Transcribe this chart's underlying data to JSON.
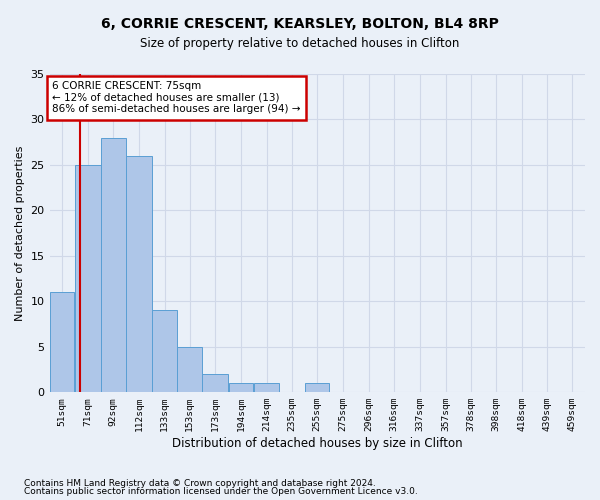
{
  "title1": "6, CORRIE CRESCENT, KEARSLEY, BOLTON, BL4 8RP",
  "title2": "Size of property relative to detached houses in Clifton",
  "xlabel": "Distribution of detached houses by size in Clifton",
  "ylabel": "Number of detached properties",
  "bin_labels": [
    "51sqm",
    "71sqm",
    "92sqm",
    "112sqm",
    "133sqm",
    "153sqm",
    "173sqm",
    "194sqm",
    "214sqm",
    "235sqm",
    "255sqm",
    "275sqm",
    "296sqm",
    "316sqm",
    "337sqm",
    "357sqm",
    "378sqm",
    "398sqm",
    "418sqm",
    "439sqm",
    "459sqm"
  ],
  "bar_values": [
    11,
    25,
    28,
    26,
    9,
    5,
    2,
    1,
    1,
    0,
    1,
    0,
    0,
    0,
    0,
    0,
    0,
    0,
    0,
    0,
    0
  ],
  "bar_color": "#aec6e8",
  "bar_edge_color": "#5a9fd4",
  "grid_color": "#d0d8e8",
  "background_color": "#eaf0f8",
  "property_line_x": 75,
  "bin_edges": [
    51,
    71,
    92,
    112,
    133,
    153,
    173,
    194,
    214,
    235,
    255,
    275,
    296,
    316,
    337,
    357,
    378,
    398,
    418,
    439,
    459,
    479
  ],
  "annotation_title": "6 CORRIE CRESCENT: 75sqm",
  "annotation_line1": "← 12% of detached houses are smaller (13)",
  "annotation_line2": "86% of semi-detached houses are larger (94) →",
  "annotation_box_color": "#ffffff",
  "annotation_border_color": "#cc0000",
  "property_line_color": "#cc0000",
  "ylim": [
    0,
    35
  ],
  "yticks": [
    0,
    5,
    10,
    15,
    20,
    25,
    30,
    35
  ],
  "footnote1": "Contains HM Land Registry data © Crown copyright and database right 2024.",
  "footnote2": "Contains public sector information licensed under the Open Government Licence v3.0."
}
